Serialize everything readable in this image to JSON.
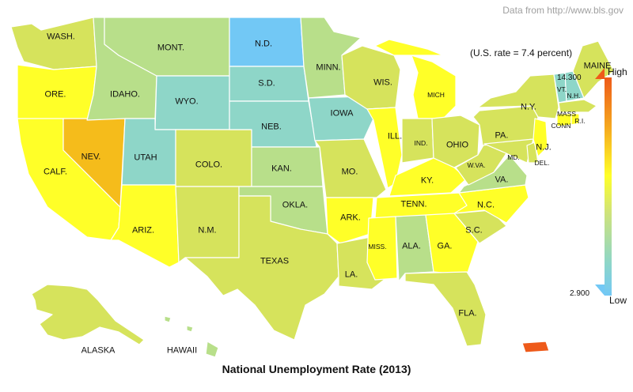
{
  "source": "Data from http://www.bls.gov",
  "us_rate": "(U.S. rate = 7.4 percent)",
  "title": "National Unemployment Rate (2013)",
  "legend": {
    "high_label": "High",
    "low_label": "Low",
    "max_value": "14.300",
    "min_value": "2.900"
  },
  "colors": {
    "very_high": "#ee5a1a",
    "high": "#f5bc1b",
    "above_avg": "#ffff28",
    "avg": "#d6e35c",
    "below_avg": "#b8df8a",
    "low": "#8ed6c8",
    "very_low": "#72c8f5"
  },
  "labels": {
    "wash": "WASH.",
    "ore": "ORE.",
    "calf": "CALF.",
    "nev": "NEV.",
    "idaho": "IDAHO.",
    "mont": "MONT.",
    "wyo": "WYO.",
    "utah": "UTAH",
    "colo": "COLO.",
    "ariz": "ARIZ.",
    "nm": "N.M.",
    "nd": "N.D.",
    "sd": "S.D.",
    "neb": "NEB.",
    "kan": "KAN.",
    "okla": "OKLA.",
    "texas": "TEXAS",
    "minn": "MINN.",
    "iowa": "IOWA",
    "mo": "MO.",
    "ark": "ARK.",
    "la": "LA.",
    "wis": "WIS.",
    "ill": "ILL.",
    "mich": "MICH",
    "ind": "IND.",
    "ohio": "OHIO",
    "ky": "KY.",
    "tenn": "TENN.",
    "miss": "MISS.",
    "ala": "ALA.",
    "ga": "GA.",
    "fla": "FLA.",
    "sc": "S.C.",
    "nc": "N.C.",
    "va": "VA.",
    "wva": "W.VA.",
    "md": "MD.",
    "del": "DEL.",
    "pa": "PA.",
    "nj": "N.J.",
    "ny": "N.Y.",
    "vt": "VT.",
    "nh": "N.H.",
    "maine": "MAINE",
    "mass": "MASS",
    "ri": "R.I.",
    "conn": "CONN",
    "alaska": "ALASKA",
    "hawaii": "HAWAII"
  }
}
